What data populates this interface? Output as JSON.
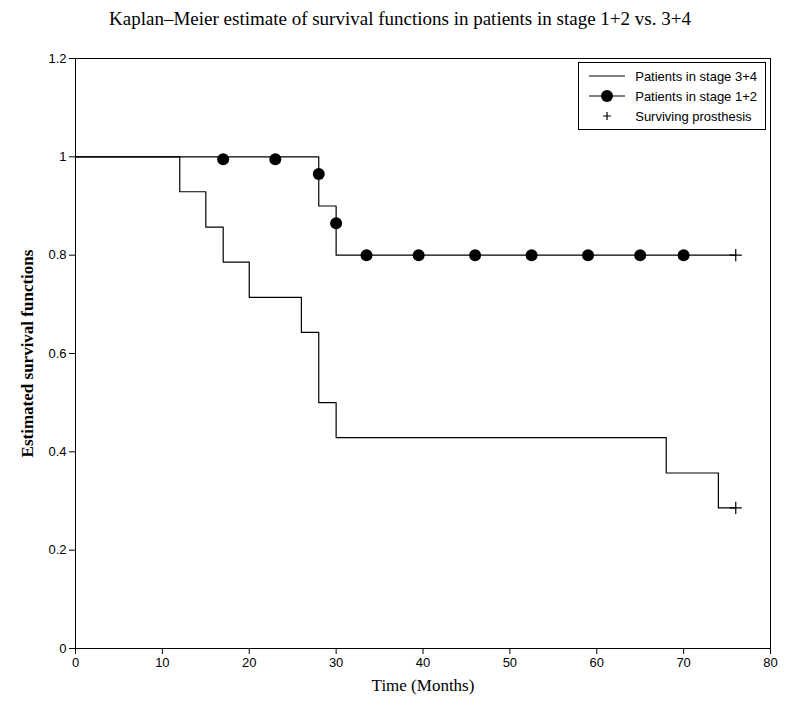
{
  "chart_data": {
    "type": "line",
    "title": "Kaplan–Meier estimate of survival functions in patients in stage 1+2 vs. 3+4",
    "x_label": "Time (Months)",
    "y_label": "Estimated survival functions",
    "xlim": [
      0,
      80
    ],
    "xticks": [
      0,
      10,
      20,
      30,
      40,
      50,
      60,
      70,
      80
    ],
    "ylim": [
      0,
      1.2
    ],
    "yticks": [
      0,
      0.2,
      0.4,
      0.6,
      0.8,
      1,
      1.2
    ],
    "legend": "top-right",
    "series": [
      {
        "name": "Patients in stage 3+4",
        "type": "line",
        "color": "#000000",
        "line_style": "solid",
        "marker": "none",
        "x": [
          0,
          12,
          15,
          17,
          20,
          26,
          28,
          30,
          68,
          74,
          76
        ],
        "values": [
          1,
          0.929,
          0.857,
          0.786,
          0.714,
          0.643,
          0.5,
          0.429,
          0.357,
          0.286,
          0.286
        ]
      },
      {
        "name": "Patients in stage 1+2",
        "type": "line",
        "color": "#000000",
        "line_style": "solid",
        "marker": "circle",
        "x": [
          0,
          28,
          30,
          76
        ],
        "values": [
          1,
          0.9,
          0.8,
          0.8
        ],
        "marker_x": [
          17,
          23,
          28,
          30,
          33.5,
          39.5,
          46,
          52.5,
          59,
          65,
          70
        ],
        "marker_values": [
          0.995,
          0.995,
          0.965,
          0.865,
          0.8,
          0.8,
          0.8,
          0.8,
          0.8,
          0.8,
          0.8
        ]
      },
      {
        "name": "Surviving prosthesis",
        "type": "scatter",
        "color": "#000000",
        "marker": "plus",
        "x": [
          76,
          76
        ],
        "values": [
          0.8,
          0.286
        ]
      }
    ]
  }
}
